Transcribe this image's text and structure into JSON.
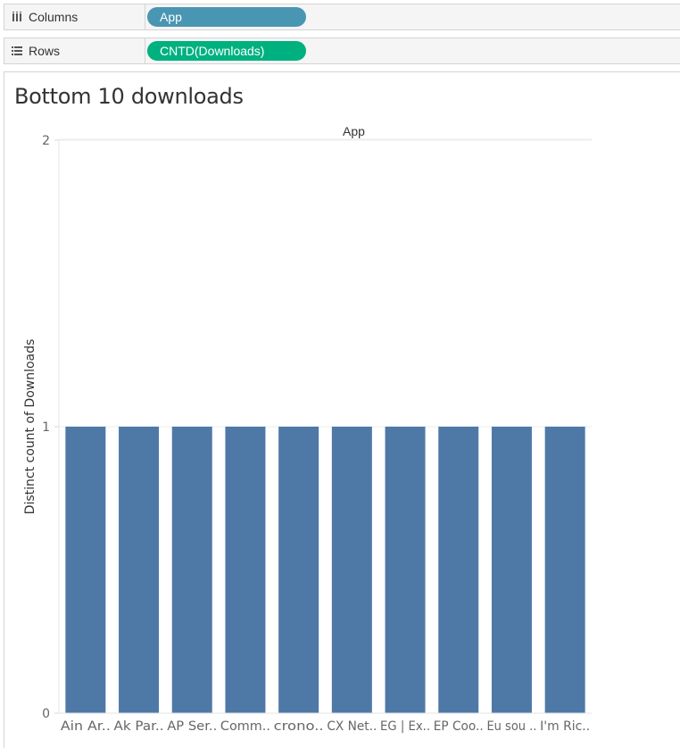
{
  "shelves": {
    "columns": {
      "label": "Columns",
      "pill": "App",
      "pill_color": "#4996b2",
      "icon": "columns-icon"
    },
    "rows": {
      "label": "Rows",
      "pill": "CNTD(Downloads)",
      "pill_color": "#00b180",
      "icon": "rows-icon"
    }
  },
  "sheet": {
    "title": "Bottom 10 downloads"
  },
  "chart_data": {
    "type": "bar",
    "xlabel": "App",
    "ylabel": "Distinct count of Downloads",
    "categories": [
      "Ain Ar..",
      "Ak Par..",
      "AP Ser..",
      "Comm..",
      "crono..",
      "CX Net..",
      "EG | Ex..",
      "EP Coo..",
      "Eu sou ..",
      "I'm Ric.."
    ],
    "values": [
      1,
      1,
      1,
      1,
      1,
      1,
      1,
      1,
      1,
      1
    ],
    "ylim": [
      0,
      2
    ],
    "yticks": [
      0,
      1,
      2
    ],
    "grid": true,
    "bar_color": "#4e79a7"
  }
}
